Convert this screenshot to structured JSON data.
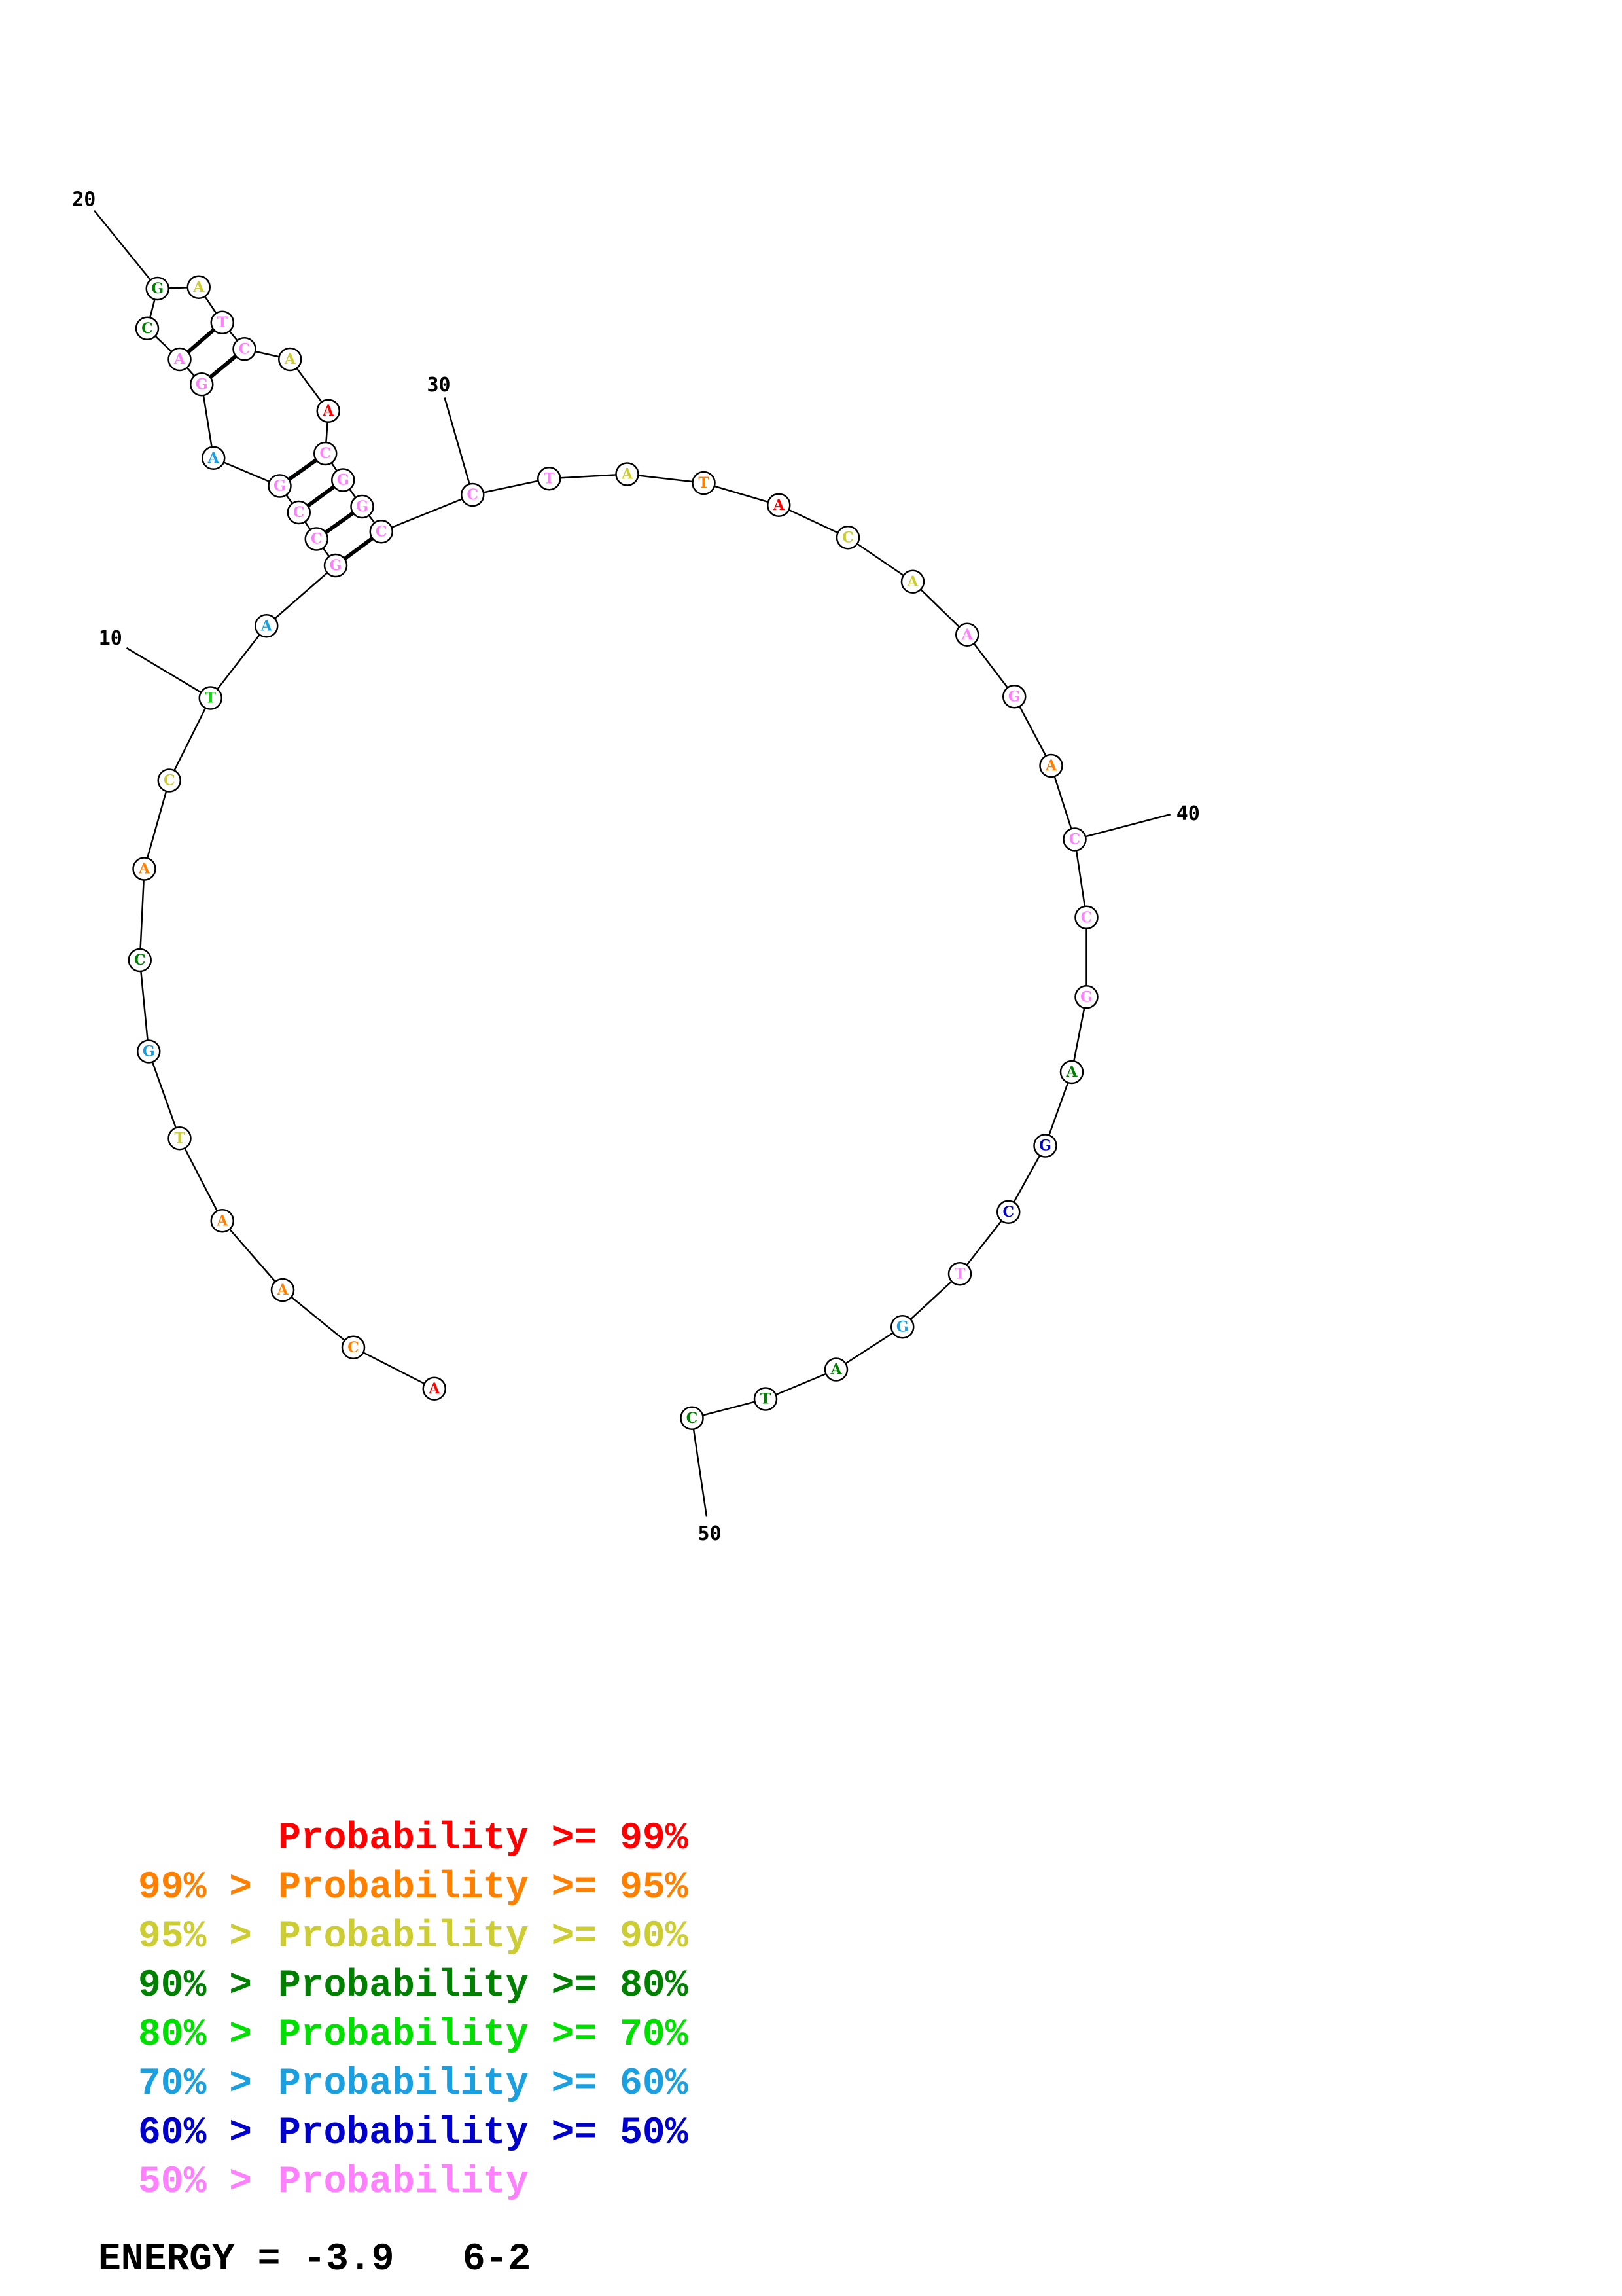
{
  "colors": {
    "p99": "#ff0000",
    "p95": "#ff8000",
    "p90": "#cccc33",
    "p80": "#008000",
    "p70": "#00e000",
    "p60": "#1aa0e0",
    "p50": "#0000cc",
    "plow": "#ff80ff"
  },
  "diagram": {
    "nucleotides": [
      {
        "base": "A",
        "color": "p99"
      },
      {
        "base": "C",
        "color": "p95"
      },
      {
        "base": "A",
        "color": "p95"
      },
      {
        "base": "A",
        "color": "p95"
      },
      {
        "base": "T",
        "color": "p90"
      },
      {
        "base": "G",
        "color": "p60"
      },
      {
        "base": "C",
        "color": "p80"
      },
      {
        "base": "A",
        "color": "p95"
      },
      {
        "base": "C",
        "color": "p90"
      },
      {
        "base": "T",
        "color": "p70"
      },
      {
        "base": "A",
        "color": "p60"
      },
      {
        "base": "G",
        "color": "plow"
      },
      {
        "base": "C",
        "color": "plow"
      },
      {
        "base": "C",
        "color": "plow"
      },
      {
        "base": "G",
        "color": "plow"
      },
      {
        "base": "A",
        "color": "p60"
      },
      {
        "base": "G",
        "color": "plow"
      },
      {
        "base": "A",
        "color": "plow"
      },
      {
        "base": "C",
        "color": "p80"
      },
      {
        "base": "G",
        "color": "p80"
      },
      {
        "base": "A",
        "color": "p90"
      },
      {
        "base": "T",
        "color": "plow"
      },
      {
        "base": "C",
        "color": "plow"
      },
      {
        "base": "A",
        "color": "p90"
      },
      {
        "base": "A",
        "color": "p99"
      },
      {
        "base": "C",
        "color": "plow"
      },
      {
        "base": "G",
        "color": "plow"
      },
      {
        "base": "G",
        "color": "plow"
      },
      {
        "base": "C",
        "color": "plow"
      },
      {
        "base": "C",
        "color": "plow"
      },
      {
        "base": "T",
        "color": "plow"
      },
      {
        "base": "A",
        "color": "p90"
      },
      {
        "base": "T",
        "color": "p95"
      },
      {
        "base": "A",
        "color": "p99"
      },
      {
        "base": "C",
        "color": "p90"
      },
      {
        "base": "A",
        "color": "p90"
      },
      {
        "base": "A",
        "color": "plow"
      },
      {
        "base": "G",
        "color": "plow"
      },
      {
        "base": "A",
        "color": "p95"
      },
      {
        "base": "C",
        "color": "plow"
      },
      {
        "base": "C",
        "color": "plow"
      },
      {
        "base": "G",
        "color": "plow"
      },
      {
        "base": "A",
        "color": "p80"
      },
      {
        "base": "G",
        "color": "p50"
      },
      {
        "base": "C",
        "color": "p50"
      },
      {
        "base": "T",
        "color": "plow"
      },
      {
        "base": "G",
        "color": "p60"
      },
      {
        "base": "A",
        "color": "p80"
      },
      {
        "base": "T",
        "color": "p80"
      },
      {
        "base": "C",
        "color": "p80"
      }
    ],
    "pairs": [
      [
        12,
        29
      ],
      [
        13,
        28
      ],
      [
        14,
        27
      ],
      [
        15,
        26
      ],
      [
        17,
        23
      ],
      [
        18,
        22
      ]
    ],
    "position_labels": [
      "10",
      "20",
      "30",
      "40",
      "50"
    ]
  },
  "legend": [
    {
      "lower": "",
      "text": "Probability >= 99%",
      "color": "p99"
    },
    {
      "lower": "99% >",
      "text": "Probability >= 95%",
      "color": "p95"
    },
    {
      "lower": "95% >",
      "text": "Probability >= 90%",
      "color": "p90"
    },
    {
      "lower": "90% >",
      "text": "Probability >= 80%",
      "color": "p80"
    },
    {
      "lower": "80% >",
      "text": "Probability >= 70%",
      "color": "p70"
    },
    {
      "lower": "70% >",
      "text": "Probability >= 60%",
      "color": "p60"
    },
    {
      "lower": "60% >",
      "text": "Probability >= 50%",
      "color": "p50"
    },
    {
      "lower": "50% >",
      "text": "Probability",
      "color": "plow"
    }
  ],
  "energy": "ENERGY = -3.9   6-2"
}
